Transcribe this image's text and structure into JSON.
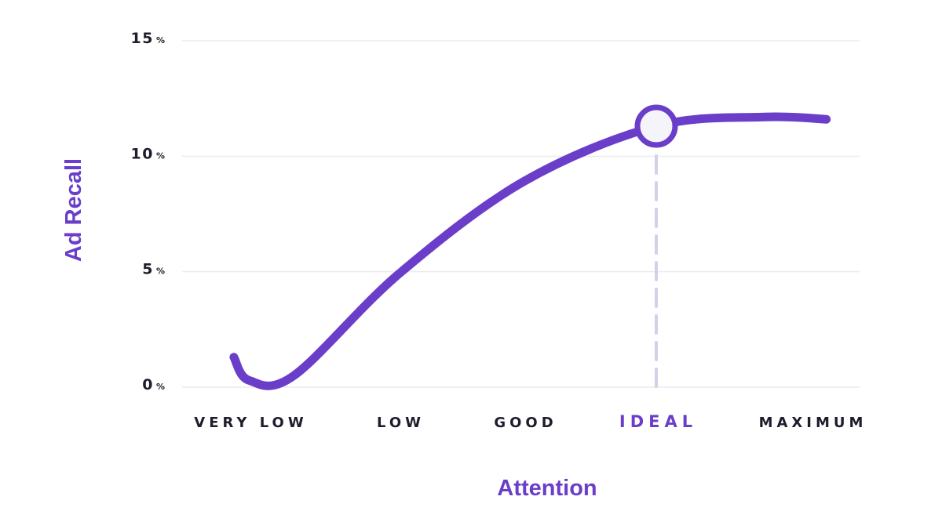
{
  "chart_data": {
    "type": "line",
    "xlabel": "Attention",
    "ylabel": "Ad Recall",
    "ylim": [
      0,
      15
    ],
    "yticks": [
      {
        "value": 0,
        "num": "0",
        "unit": "%"
      },
      {
        "value": 5,
        "num": "5",
        "unit": "%"
      },
      {
        "value": 10,
        "num": "10",
        "unit": "%"
      },
      {
        "value": 15,
        "num": "15",
        "unit": "%"
      }
    ],
    "categories": [
      "VERY LOW",
      "LOW",
      "GOOD",
      "IDEAL",
      "MAXIMUM"
    ],
    "highlight_category": "IDEAL",
    "grid": true,
    "series": [
      {
        "x": [
          -0.1,
          0,
          0.3,
          1,
          2,
          3,
          3.7,
          4.1
        ],
        "values": [
          1.3,
          0.3,
          0.5,
          4.9,
          8.9,
          11.3,
          11.7,
          11.6
        ]
      }
    ],
    "marker": {
      "x": 3,
      "y": 11.3
    },
    "colors": {
      "line": "#6a3ec9",
      "accent": "#6a3ec9",
      "grid": "#ebebf0",
      "dash": "#d3d0e8",
      "text": "#1d1d2b",
      "marker_fill": "#f5f4fa"
    }
  }
}
